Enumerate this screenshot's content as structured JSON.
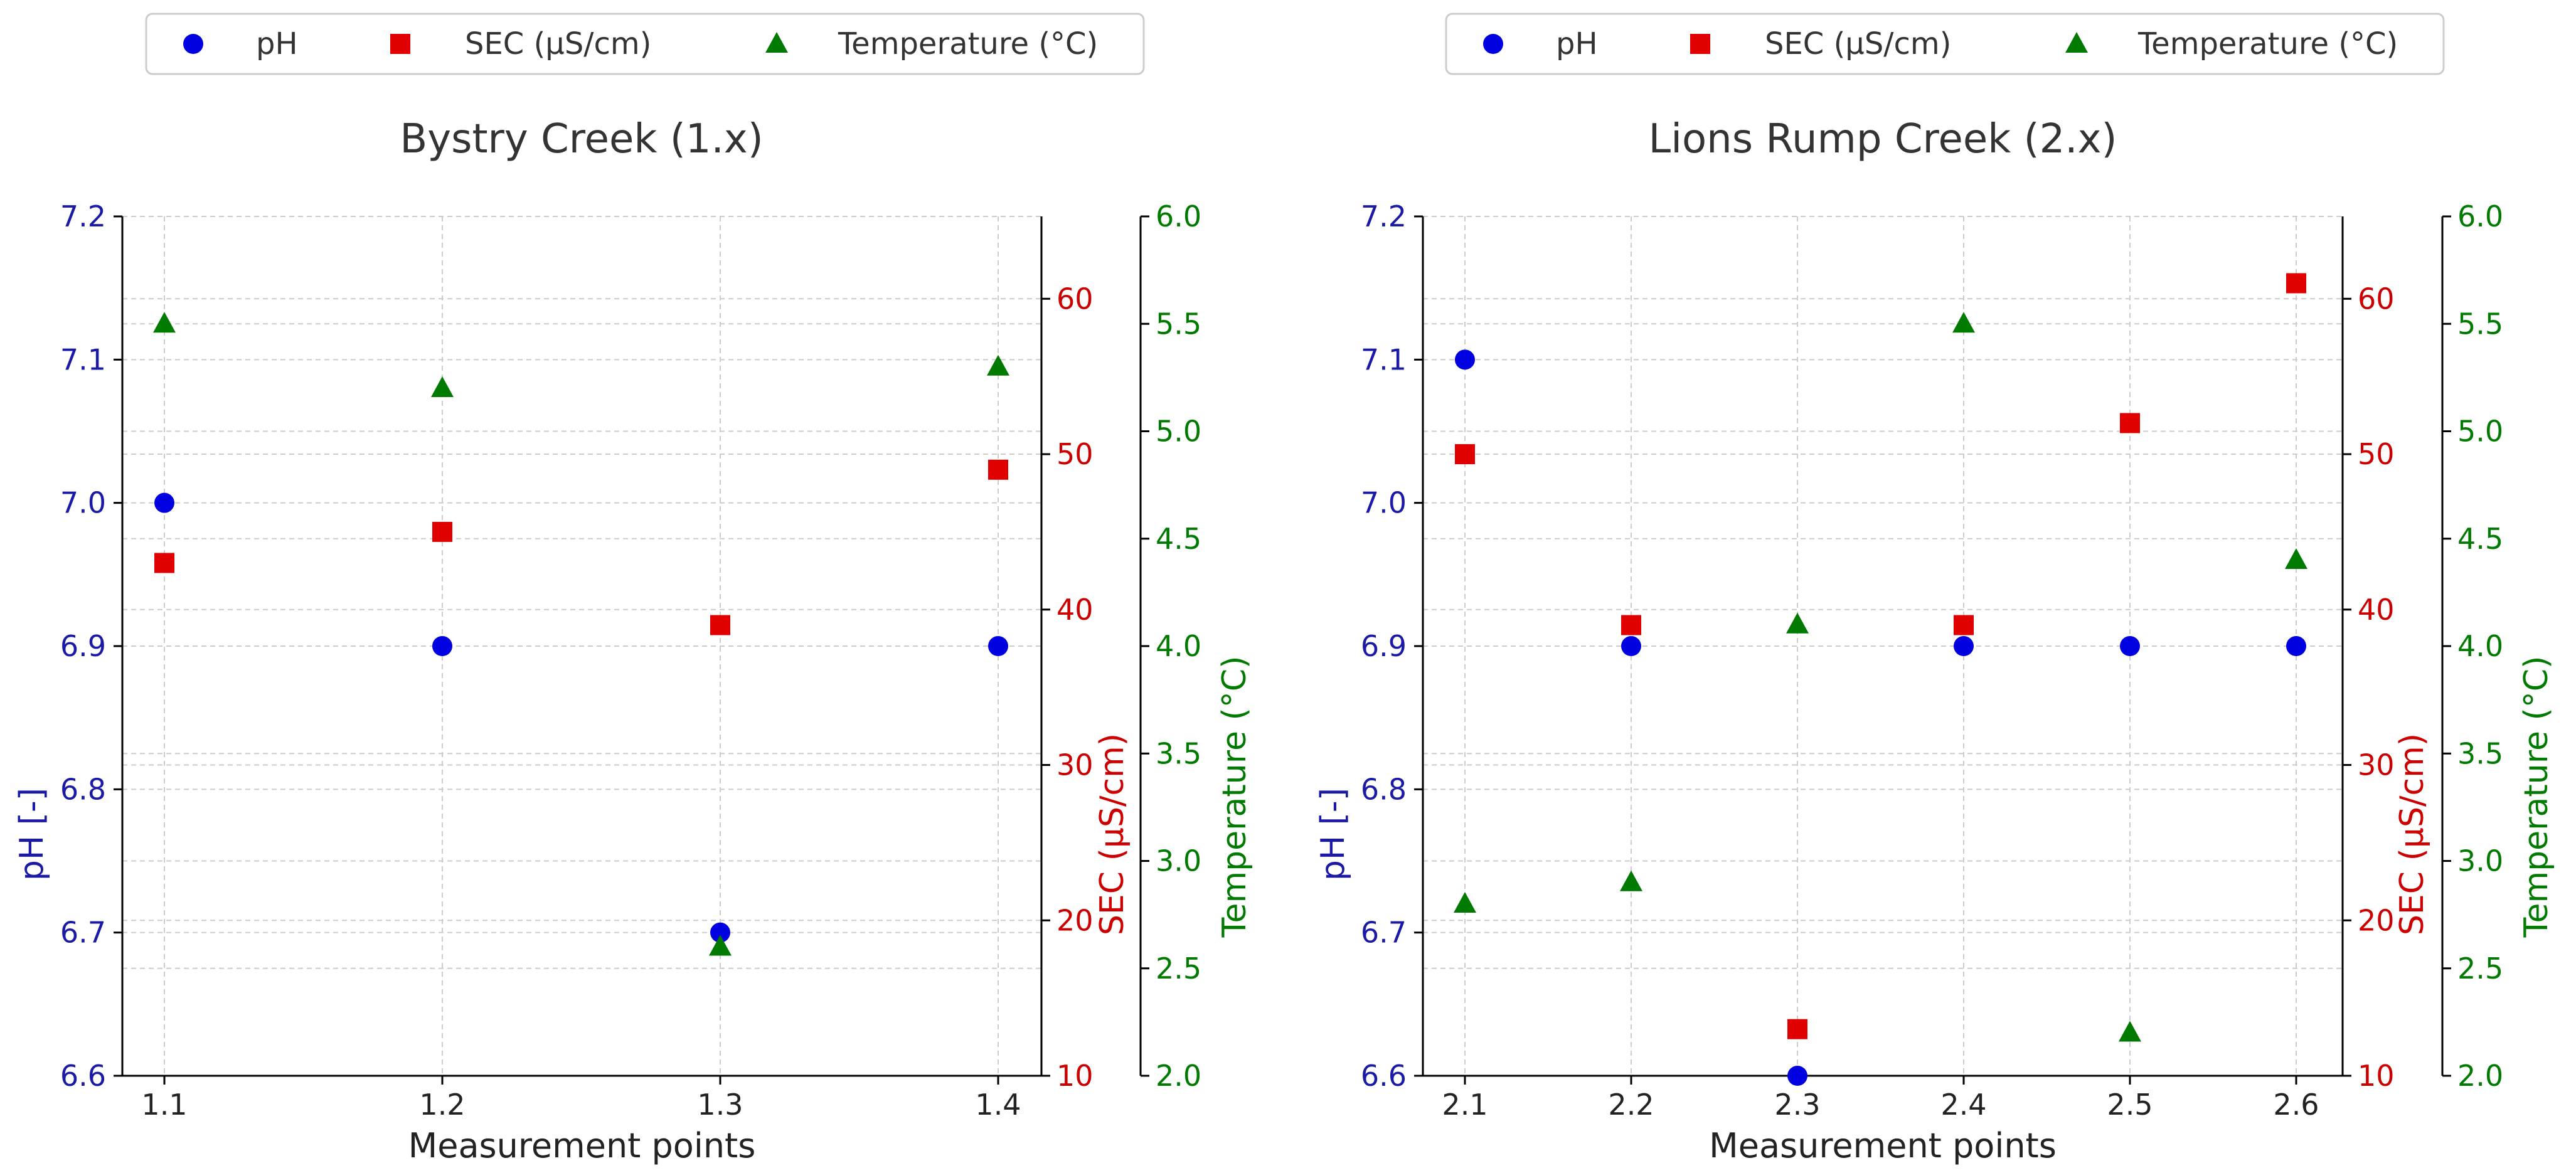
{
  "chart_data": [
    {
      "type": "scatter",
      "title": "Bystry Creek (1.x)",
      "xlabel": "Measurement points",
      "categories": [
        "1.1",
        "1.2",
        "1.3",
        "1.4"
      ],
      "axes": [
        {
          "label": "pH [-]",
          "side": "left",
          "range": [
            6.6,
            7.2
          ],
          "ticks": [
            "6.6",
            "6.7",
            "6.8",
            "6.9",
            "7.0",
            "7.1",
            "7.2"
          ],
          "color": "#1a1aa6"
        },
        {
          "label": "SEC (μS/cm)",
          "side": "right",
          "range": [
            10,
            65.3
          ],
          "ticks": [
            "10",
            "20",
            "30",
            "40",
            "50",
            "60"
          ],
          "color": "#cc0000"
        },
        {
          "label": "Temperature (°C)",
          "side": "right-outer",
          "range": [
            2.0,
            6.0
          ],
          "ticks": [
            "2.0",
            "2.5",
            "3.0",
            "3.5",
            "4.0",
            "4.5",
            "5.0",
            "5.5",
            "6.0"
          ],
          "color": "#007a00"
        }
      ],
      "series": [
        {
          "name": "pH",
          "axis": 0,
          "marker": "circle",
          "color": "#0000e0",
          "values": [
            7.0,
            6.9,
            6.7,
            6.9
          ]
        },
        {
          "name": "SEC (μS/cm)",
          "axis": 1,
          "marker": "square",
          "color": "#e00000",
          "values": [
            43,
            45,
            39,
            49
          ]
        },
        {
          "name": "Temperature (°C)",
          "axis": 2,
          "marker": "triangle",
          "color": "#007a00",
          "values": [
            5.5,
            5.2,
            2.6,
            5.3
          ]
        }
      ],
      "grid": true,
      "legend_position": "top-center"
    },
    {
      "type": "scatter",
      "title": "Lions Rump Creek (2.x)",
      "xlabel": "Measurement points",
      "categories": [
        "2.1",
        "2.2",
        "2.3",
        "2.4",
        "2.5",
        "2.6"
      ],
      "axes": [
        {
          "label": "pH [-]",
          "side": "left",
          "range": [
            6.6,
            7.2
          ],
          "ticks": [
            "6.6",
            "6.7",
            "6.8",
            "6.9",
            "7.0",
            "7.1",
            "7.2"
          ],
          "color": "#1a1aa6"
        },
        {
          "label": "SEC (μS/cm)",
          "side": "right",
          "range": [
            10,
            65.3
          ],
          "ticks": [
            "10",
            "20",
            "30",
            "40",
            "50",
            "60"
          ],
          "color": "#cc0000"
        },
        {
          "label": "Temperature (°C)",
          "side": "right-outer",
          "range": [
            2.0,
            6.0
          ],
          "ticks": [
            "2.0",
            "2.5",
            "3.0",
            "3.5",
            "4.0",
            "4.5",
            "5.0",
            "5.5",
            "6.0"
          ],
          "color": "#007a00"
        }
      ],
      "series": [
        {
          "name": "pH",
          "axis": 0,
          "marker": "circle",
          "color": "#0000e0",
          "values": [
            7.1,
            6.9,
            6.6,
            6.9,
            6.9,
            6.9
          ]
        },
        {
          "name": "SEC (μS/cm)",
          "axis": 1,
          "marker": "square",
          "color": "#e00000",
          "values": [
            50,
            39,
            13,
            39,
            52,
            61
          ]
        },
        {
          "name": "Temperature (°C)",
          "axis": 2,
          "marker": "triangle",
          "color": "#007a00",
          "values": [
            2.8,
            2.9,
            4.1,
            5.5,
            2.2,
            4.4
          ]
        }
      ],
      "grid": true,
      "legend_position": "top-center"
    }
  ]
}
